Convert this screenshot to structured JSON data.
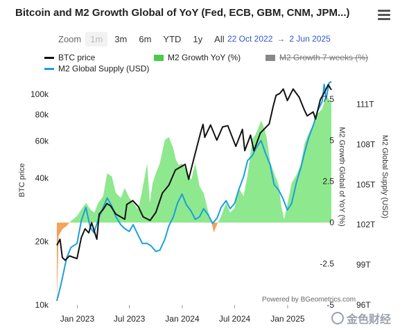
{
  "title": "Bitcoin and M2 Growth Global of YoY (Fed, ECB, GBM, CNM, JPM...)",
  "zoom": {
    "label": "Zoom",
    "buttons": [
      "1m",
      "3m",
      "6m",
      "YTD",
      "1y",
      "All"
    ],
    "disabled": "1m"
  },
  "date_range": {
    "from": "22 Oct 2022",
    "arrow": "→",
    "to": "2 Jun 2025"
  },
  "legend": {
    "btc": "BTC price",
    "m2_growth": "M2 Growth YoY (%)",
    "m2_7w": "M2 Growth 7 weeks (%)",
    "m2_supply": "M2 Global Supply (USD)"
  },
  "credit": "Powered by BGeometrics.com",
  "watermark": "金色财经",
  "colors": {
    "btc": "#111111",
    "m2_supply": "#1a9ee0",
    "m2_growth_positive": "#8ee88e",
    "m2_growth_negative": "#f5a25a",
    "m2_growth_line": "#4cc94c",
    "m2_7w": "#777777",
    "date_range": "#3355cc"
  },
  "chart_data": {
    "type": "line",
    "x_range": [
      "2022-10-22",
      "2025-06-02"
    ],
    "x_tick_labels": [
      "Jan 2023",
      "Jul 2023",
      "Jan 2024",
      "Jul 2024",
      "Jan 2025"
    ],
    "x_ticks": [
      "2023-01-01",
      "2023-07-01",
      "2024-01-01",
      "2024-07-01",
      "2025-01-01"
    ],
    "axes": {
      "btc": {
        "label": "BTC price",
        "scale": "log",
        "range": [
          10000,
          120000
        ],
        "tick_labels": [
          "10k",
          "20k",
          "40k",
          "60k",
          "80k",
          "100k"
        ],
        "ticks": [
          10000,
          20000,
          40000,
          60000,
          80000,
          100000
        ]
      },
      "growth": {
        "label": "M2 Growth Global of YoY (%)",
        "range": [
          -5,
          8.8
        ],
        "tick_labels": [
          "-5",
          "-2.5",
          "0",
          "2.5",
          "5",
          "7.5"
        ],
        "ticks": [
          -5,
          -2.5,
          0,
          2.5,
          5,
          7.5
        ]
      },
      "supply": {
        "label": "M2 Global Supply (USD)",
        "range": [
          96,
          113
        ],
        "tick_labels": [
          "96T",
          "99T",
          "102T",
          "105T",
          "108T",
          "111T"
        ],
        "ticks": [
          96,
          99,
          102,
          105,
          108,
          111
        ]
      }
    },
    "series": [
      {
        "name": "BTC price",
        "axis": "btc",
        "style": "line",
        "points": [
          [
            "2022-10-22",
            19200
          ],
          [
            "2022-11-02",
            20500
          ],
          [
            "2022-11-10",
            16800
          ],
          [
            "2022-11-20",
            16300
          ],
          [
            "2022-12-05",
            17100
          ],
          [
            "2022-12-20",
            16800
          ],
          [
            "2022-12-31",
            16600
          ],
          [
            "2023-01-15",
            20900
          ],
          [
            "2023-01-28",
            23000
          ],
          [
            "2023-02-10",
            22000
          ],
          [
            "2023-02-20",
            24600
          ],
          [
            "2023-03-10",
            20500
          ],
          [
            "2023-03-18",
            27000
          ],
          [
            "2023-04-01",
            28400
          ],
          [
            "2023-04-14",
            30300
          ],
          [
            "2023-04-27",
            29500
          ],
          [
            "2023-05-15",
            27000
          ],
          [
            "2023-06-15",
            25500
          ],
          [
            "2023-06-22",
            30000
          ],
          [
            "2023-07-13",
            31300
          ],
          [
            "2023-08-01",
            29300
          ],
          [
            "2023-08-18",
            26200
          ],
          [
            "2023-09-11",
            25200
          ],
          [
            "2023-10-01",
            27500
          ],
          [
            "2023-10-24",
            34000
          ],
          [
            "2023-11-15",
            37000
          ],
          [
            "2023-12-08",
            43700
          ],
          [
            "2024-01-11",
            46500
          ],
          [
            "2024-01-23",
            39500
          ],
          [
            "2024-02-14",
            51800
          ],
          [
            "2024-03-05",
            66000
          ],
          [
            "2024-03-13",
            72000
          ],
          [
            "2024-03-19",
            62500
          ],
          [
            "2024-04-08",
            71500
          ],
          [
            "2024-04-30",
            60600
          ],
          [
            "2024-05-20",
            70000
          ],
          [
            "2024-06-07",
            71000
          ],
          [
            "2024-07-05",
            56600
          ],
          [
            "2024-07-28",
            68200
          ],
          [
            "2024-08-05",
            54000
          ],
          [
            "2024-08-25",
            64000
          ],
          [
            "2024-09-06",
            53900
          ],
          [
            "2024-09-28",
            65500
          ],
          [
            "2024-10-29",
            72300
          ],
          [
            "2024-11-12",
            88000
          ],
          [
            "2024-11-22",
            98900
          ],
          [
            "2024-12-05",
            101000
          ],
          [
            "2024-12-17",
            106000
          ],
          [
            "2024-12-31",
            93400
          ],
          [
            "2025-01-20",
            106000
          ],
          [
            "2025-02-10",
            97000
          ],
          [
            "2025-02-28",
            84300
          ],
          [
            "2025-03-10",
            79000
          ],
          [
            "2025-03-31",
            82500
          ],
          [
            "2025-04-08",
            76300
          ],
          [
            "2025-04-25",
            94500
          ],
          [
            "2025-05-12",
            104000
          ],
          [
            "2025-05-22",
            111000
          ],
          [
            "2025-06-02",
            105000
          ]
        ]
      },
      {
        "name": "M2 Global Supply (USD)",
        "axis": "supply",
        "style": "line",
        "points": [
          [
            "2022-10-22",
            96.3
          ],
          [
            "2022-11-05",
            97.5
          ],
          [
            "2022-11-25",
            99.5
          ],
          [
            "2022-12-10",
            100.3
          ],
          [
            "2022-12-31",
            100.6
          ],
          [
            "2023-01-15",
            102.3
          ],
          [
            "2023-01-31",
            103.3
          ],
          [
            "2023-02-15",
            101.8
          ],
          [
            "2023-02-28",
            101.4
          ],
          [
            "2023-03-15",
            102.4
          ],
          [
            "2023-04-01",
            103.3
          ],
          [
            "2023-04-15",
            104.0
          ],
          [
            "2023-05-01",
            103.4
          ],
          [
            "2023-05-15",
            102.6
          ],
          [
            "2023-06-01",
            102.0
          ],
          [
            "2023-06-15",
            101.7
          ],
          [
            "2023-07-01",
            101.5
          ],
          [
            "2023-07-14",
            102.0
          ],
          [
            "2023-08-01",
            101.2
          ],
          [
            "2023-08-15",
            100.6
          ],
          [
            "2023-09-01",
            100.6
          ],
          [
            "2023-09-15",
            100.4
          ],
          [
            "2023-10-01",
            100.0
          ],
          [
            "2023-10-15",
            100.1
          ],
          [
            "2023-11-01",
            100.9
          ],
          [
            "2023-11-15",
            101.9
          ],
          [
            "2023-12-01",
            102.6
          ],
          [
            "2023-12-15",
            103.6
          ],
          [
            "2023-12-31",
            104.3
          ],
          [
            "2024-01-15",
            103.5
          ],
          [
            "2024-02-01",
            103.0
          ],
          [
            "2024-02-15",
            102.4
          ],
          [
            "2024-03-01",
            102.6
          ],
          [
            "2024-03-15",
            103.2
          ],
          [
            "2024-04-01",
            102.7
          ],
          [
            "2024-04-15",
            102.1
          ],
          [
            "2024-05-01",
            102.5
          ],
          [
            "2024-05-15",
            103.3
          ],
          [
            "2024-06-01",
            103.8
          ],
          [
            "2024-06-15",
            103.2
          ],
          [
            "2024-07-01",
            103.6
          ],
          [
            "2024-07-15",
            104.6
          ],
          [
            "2024-08-01",
            105.6
          ],
          [
            "2024-08-15",
            106.8
          ],
          [
            "2024-09-01",
            107.2
          ],
          [
            "2024-09-15",
            107.8
          ],
          [
            "2024-10-01",
            108.3
          ],
          [
            "2024-10-15",
            107.4
          ],
          [
            "2024-11-01",
            106.5
          ],
          [
            "2024-11-15",
            105.0
          ],
          [
            "2024-12-01",
            104.6
          ],
          [
            "2024-12-15",
            104.0
          ],
          [
            "2024-12-31",
            103.1
          ],
          [
            "2025-01-15",
            103.6
          ],
          [
            "2025-02-01",
            105.2
          ],
          [
            "2025-02-15",
            106.2
          ],
          [
            "2025-03-01",
            107.4
          ],
          [
            "2025-03-15",
            108.5
          ],
          [
            "2025-04-01",
            109.5
          ],
          [
            "2025-04-15",
            110.5
          ],
          [
            "2025-05-01",
            111.2
          ],
          [
            "2025-05-08",
            112.5
          ],
          [
            "2025-05-15",
            111.4
          ],
          [
            "2025-05-25",
            112.6
          ],
          [
            "2025-06-02",
            112.7
          ]
        ]
      },
      {
        "name": "M2 Growth YoY (%)",
        "axis": "growth",
        "style": "area",
        "points": [
          [
            "2022-10-22",
            -4.8
          ],
          [
            "2022-10-28",
            -0.8
          ],
          [
            "2022-11-10",
            -0.4
          ],
          [
            "2022-11-25",
            -0.2
          ],
          [
            "2022-12-10",
            0.1
          ],
          [
            "2022-12-31",
            0.4
          ],
          [
            "2023-01-15",
            0.8
          ],
          [
            "2023-02-01",
            1.2
          ],
          [
            "2023-02-15",
            0.8
          ],
          [
            "2023-03-01",
            0.6
          ],
          [
            "2023-03-15",
            1.2
          ],
          [
            "2023-04-01",
            1.6
          ],
          [
            "2023-04-15",
            3.0
          ],
          [
            "2023-05-01",
            2.8
          ],
          [
            "2023-05-15",
            1.8
          ],
          [
            "2023-06-01",
            1.5
          ],
          [
            "2023-06-15",
            2.1
          ],
          [
            "2023-07-01",
            1.5
          ],
          [
            "2023-07-15",
            1.2
          ],
          [
            "2023-08-01",
            0.8
          ],
          [
            "2023-08-15",
            2.0
          ],
          [
            "2023-09-01",
            3.6
          ],
          [
            "2023-09-10",
            1.2
          ],
          [
            "2023-09-20",
            2.4
          ],
          [
            "2023-10-01",
            3.0
          ],
          [
            "2023-10-15",
            3.6
          ],
          [
            "2023-11-01",
            5.0
          ],
          [
            "2023-11-15",
            5.2
          ],
          [
            "2023-12-01",
            4.5
          ],
          [
            "2023-12-10",
            3.8
          ],
          [
            "2023-12-20",
            3.5
          ],
          [
            "2023-12-31",
            3.6
          ],
          [
            "2024-01-15",
            3.2
          ],
          [
            "2024-02-01",
            2.6
          ],
          [
            "2024-02-15",
            3.6
          ],
          [
            "2024-03-01",
            2.2
          ],
          [
            "2024-03-15",
            1.8
          ],
          [
            "2024-04-01",
            0.6
          ],
          [
            "2024-04-10",
            0.1
          ],
          [
            "2024-04-20",
            -0.6
          ],
          [
            "2024-05-01",
            -0.1
          ],
          [
            "2024-05-15",
            0.4
          ],
          [
            "2024-06-01",
            1.2
          ],
          [
            "2024-06-15",
            0.6
          ],
          [
            "2024-07-01",
            0.9
          ],
          [
            "2024-07-15",
            2.1
          ],
          [
            "2024-08-01",
            1.6
          ],
          [
            "2024-08-15",
            2.9
          ],
          [
            "2024-09-01",
            5.1
          ],
          [
            "2024-09-10",
            5.3
          ],
          [
            "2024-09-20",
            5.7
          ],
          [
            "2024-10-01",
            6.2
          ],
          [
            "2024-10-10",
            5.8
          ],
          [
            "2024-10-20",
            5.2
          ],
          [
            "2024-11-01",
            3.7
          ],
          [
            "2024-11-15",
            3.0
          ],
          [
            "2024-12-01",
            2.3
          ],
          [
            "2024-12-10",
            1.0
          ],
          [
            "2024-12-20",
            0.2
          ],
          [
            "2024-12-31",
            1.1
          ],
          [
            "2025-01-15",
            2.4
          ],
          [
            "2025-02-01",
            2.9
          ],
          [
            "2025-02-15",
            3.5
          ],
          [
            "2025-03-01",
            4.8
          ],
          [
            "2025-03-15",
            5.4
          ],
          [
            "2025-04-01",
            6.0
          ],
          [
            "2025-04-15",
            6.6
          ],
          [
            "2025-05-01",
            6.9
          ],
          [
            "2025-05-10",
            7.4
          ],
          [
            "2025-05-20",
            7.6
          ],
          [
            "2025-06-02",
            7.3
          ]
        ]
      },
      {
        "name": "M2 Growth 7 weeks (%)",
        "axis": "growth",
        "style": "line",
        "hidden": true,
        "points": []
      }
    ]
  }
}
